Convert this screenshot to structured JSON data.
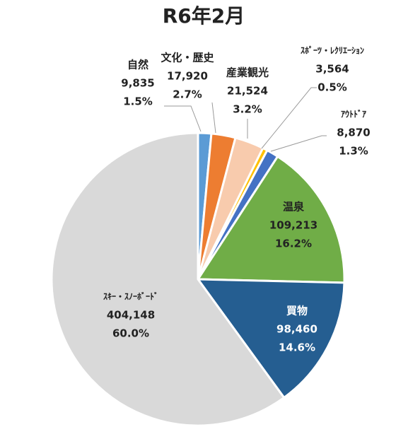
{
  "chart_data": {
    "type": "pie",
    "title": "R6年2月",
    "categories": [
      "自然",
      "文化・歴史",
      "産業観光",
      "ｽﾎﾟｰﾂ・ﾚｸﾘｴｰｼｮﾝ",
      "ｱｳﾄﾄﾞｱ",
      "温泉",
      "買物",
      "ｽｷｰ・ｽﾉｰﾎﾞｰﾄﾞ"
    ],
    "values": [
      9835,
      17920,
      21524,
      3564,
      8870,
      109213,
      98460,
      404148
    ],
    "value_labels": [
      "9,835",
      "17,920",
      "21,524",
      "3,564",
      "8,870",
      "109,213",
      "98,460",
      "404,148"
    ],
    "percentages": [
      1.5,
      2.7,
      3.2,
      0.5,
      1.3,
      16.2,
      14.6,
      60.0
    ],
    "percentage_labels": [
      "1.5%",
      "2.7%",
      "3.2%",
      "0.5%",
      "1.3%",
      "16.2%",
      "14.6%",
      "60.0%"
    ],
    "colors": [
      "#5b9bd5",
      "#ed7d31",
      "#f8cbad",
      "#ffc000",
      "#4472c4",
      "#70ad47",
      "#255e91",
      "#d9d9d9"
    ]
  }
}
